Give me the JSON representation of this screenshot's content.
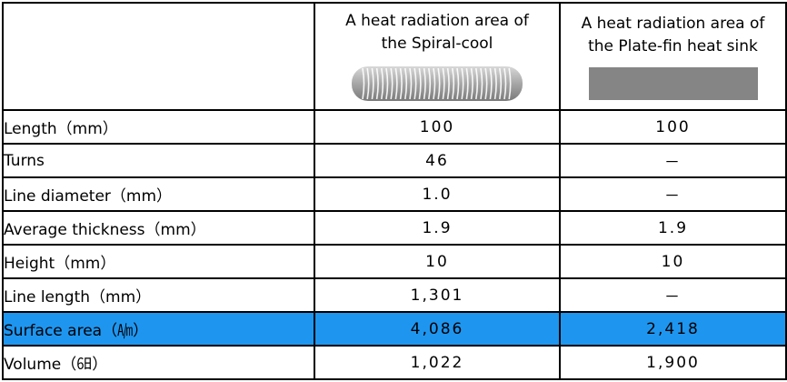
{
  "header": {
    "spiral_line1": "A heat radiation area of",
    "spiral_line2": "the Spiral-cool",
    "plate_line1": "A heat radiation area of",
    "plate_line2": "the Plate-fin heat sink"
  },
  "rows": [
    {
      "label": "Length（mm）",
      "spiral": "100",
      "plate": "100"
    },
    {
      "label": "Turns",
      "spiral": "46",
      "plate": "－"
    },
    {
      "label": "Line diameter（mm）",
      "spiral": "1.0",
      "plate": "－"
    },
    {
      "label": "Average thickness（mm）",
      "spiral": "1.9",
      "plate": "1.9"
    },
    {
      "label": "Height（mm）",
      "spiral": "10",
      "plate": "10"
    },
    {
      "label": "Line length（mm）",
      "spiral": "1,301",
      "plate": "－"
    },
    {
      "label": "Surface area（㏟）",
      "spiral": "4,086",
      "plate": "2,418"
    },
    {
      "label": "Volume（㏥）",
      "spiral": "1,022",
      "plate": "1,900"
    }
  ],
  "colors": {
    "highlight_row": "#1e96f0",
    "spiral_coil": "#a6a6a6",
    "plate_fin": "#858585"
  }
}
